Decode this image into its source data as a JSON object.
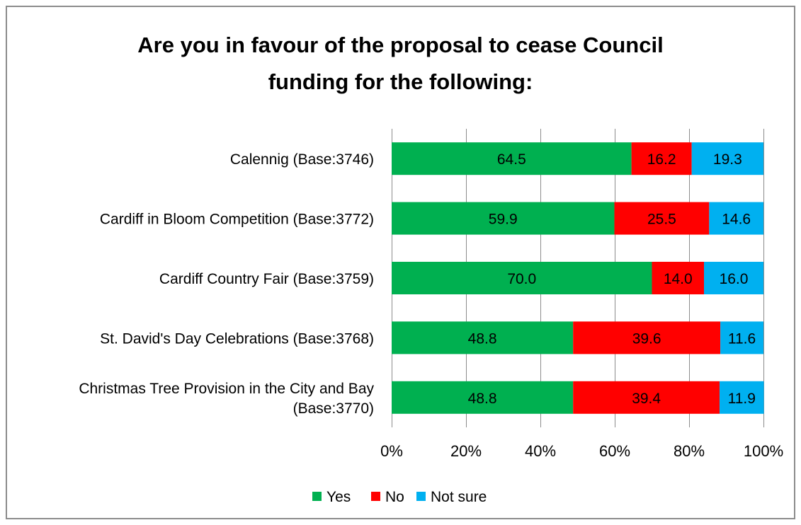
{
  "chart_data": {
    "type": "bar",
    "orientation": "horizontal",
    "stacked": true,
    "title_lines": [
      "Are you in favour of the proposal to cease Council",
      "funding for the following:"
    ],
    "categories": [
      [
        "Calennig (Base:3746)"
      ],
      [
        "Cardiff in Bloom Competition (Base:3772)"
      ],
      [
        "Cardiff Country Fair (Base:3759)"
      ],
      [
        "St. David's Day Celebrations (Base:3768)"
      ],
      [
        "Christmas Tree Provision in the City and Bay",
        "(Base:3770)"
      ]
    ],
    "series": [
      {
        "name": "Yes",
        "color": "#00b050",
        "values": [
          64.5,
          59.9,
          70.0,
          48.8,
          48.8
        ],
        "labels": [
          "64.5",
          "59.9",
          "70.0",
          "48.8",
          "48.8"
        ]
      },
      {
        "name": "No",
        "color": "#ff0000",
        "values": [
          16.2,
          25.5,
          14.0,
          39.6,
          39.4
        ],
        "labels": [
          "16.2",
          "25.5",
          "14.0",
          "39.6",
          "39.4"
        ]
      },
      {
        "name": "Not sure",
        "color": "#00b0f0",
        "values": [
          19.3,
          14.6,
          16.0,
          11.6,
          11.9
        ],
        "labels": [
          "19.3",
          "14.6",
          "16.0",
          "11.6",
          "11.9"
        ]
      }
    ],
    "xlim": [
      0,
      100
    ],
    "x_ticks": [
      "0%",
      "20%",
      "40%",
      "60%",
      "80%",
      "100%"
    ],
    "grid": true,
    "legend_position": "bottom"
  }
}
